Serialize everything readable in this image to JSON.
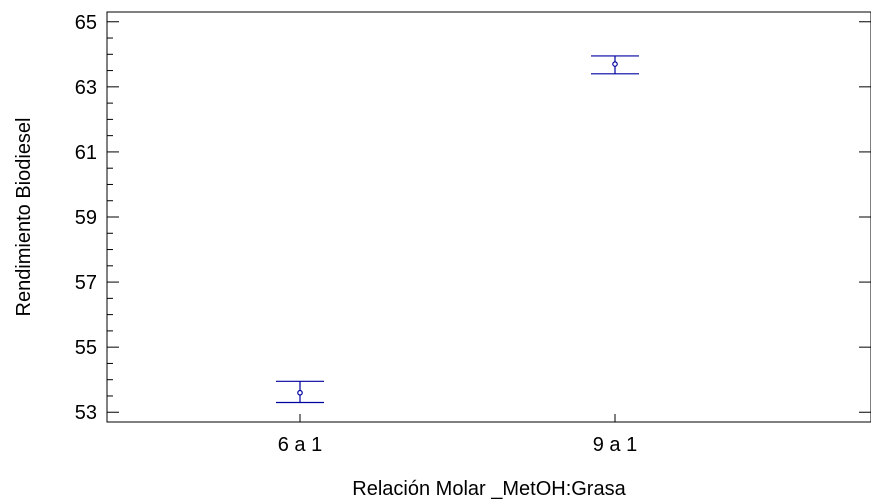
{
  "chart_data": {
    "type": "errorbar",
    "title": "",
    "xlabel": "Relación Molar _MetOH:Grasa",
    "ylabel": "Rendimiento Biodiesel",
    "categories": [
      "6 a 1",
      "9 a 1"
    ],
    "series": [
      {
        "points": [
          {
            "category": "6 a 1",
            "mean": 53.6,
            "lower": 53.3,
            "upper": 53.95
          },
          {
            "category": "9 a 1",
            "mean": 63.7,
            "lower": 63.4,
            "upper": 63.95
          }
        ]
      }
    ],
    "ylim": [
      52.7,
      65.3
    ],
    "yticks": [
      "53",
      "55",
      "57",
      "59",
      "61",
      "63",
      "65"
    ],
    "y_minor_step": 0.5,
    "grid": false,
    "colors": {
      "series": "#0000a0",
      "axis": "#000000"
    }
  }
}
